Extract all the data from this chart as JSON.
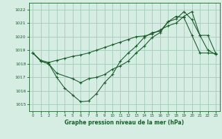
{
  "xlabel": "Graphe pression niveau de la mer (hPa)",
  "background_color": "#d5ede3",
  "grid_color": "#aacfbe",
  "line_color": "#1a5c2a",
  "xlim": [
    -0.5,
    23.5
  ],
  "ylim": [
    1014.5,
    1022.5
  ],
  "yticks": [
    1015,
    1016,
    1017,
    1018,
    1019,
    1020,
    1021,
    1022
  ],
  "xticks": [
    0,
    1,
    2,
    3,
    4,
    5,
    6,
    7,
    8,
    9,
    10,
    11,
    12,
    13,
    14,
    15,
    16,
    17,
    18,
    19,
    20,
    21,
    22,
    23
  ],
  "line1_x": [
    0,
    1,
    2,
    3,
    4,
    5,
    6,
    7,
    8,
    9,
    10,
    11,
    12,
    13,
    14,
    15,
    16,
    17,
    18,
    19,
    20,
    21,
    22,
    23
  ],
  "line1_y": [
    1018.8,
    1018.2,
    1018.0,
    1017.0,
    1016.2,
    1015.7,
    1015.2,
    1015.25,
    1015.8,
    1016.6,
    1017.2,
    1018.2,
    1018.8,
    1019.3,
    1019.95,
    1020.3,
    1020.4,
    1021.1,
    1021.5,
    1021.4,
    1020.1,
    1018.8,
    1018.8,
    1018.75
  ],
  "line2_x": [
    0,
    1,
    2,
    3,
    5,
    6,
    7,
    8,
    9,
    10,
    11,
    12,
    13,
    14,
    15,
    16,
    17,
    18,
    19,
    20,
    21,
    22,
    23
  ],
  "line2_y": [
    1018.8,
    1018.2,
    1018.0,
    1017.3,
    1016.9,
    1016.6,
    1016.9,
    1017.0,
    1017.2,
    1017.6,
    1017.85,
    1018.2,
    1018.8,
    1019.3,
    1019.95,
    1020.3,
    1021.1,
    1021.3,
    1021.85,
    1021.25,
    1020.1,
    1020.1,
    1018.75
  ],
  "line3_x": [
    0,
    1,
    2,
    3,
    4,
    5,
    6,
    7,
    8,
    9,
    10,
    11,
    12,
    13,
    14,
    15,
    16,
    17,
    18,
    19,
    20,
    21,
    22,
    23
  ],
  "line3_y": [
    1018.8,
    1018.25,
    1018.1,
    1018.25,
    1018.4,
    1018.55,
    1018.65,
    1018.8,
    1019.0,
    1019.2,
    1019.4,
    1019.6,
    1019.8,
    1020.0,
    1020.05,
    1020.2,
    1020.5,
    1020.8,
    1021.0,
    1021.5,
    1021.85,
    1020.1,
    1019.0,
    1018.7
  ]
}
